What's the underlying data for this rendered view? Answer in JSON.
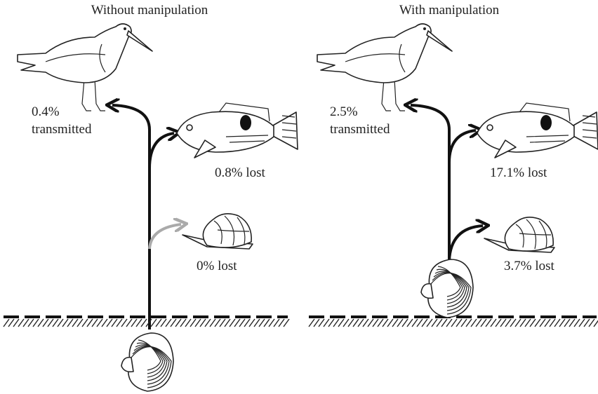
{
  "panels": [
    {
      "title": "Without manipulation",
      "transmitted_percent": "0.4%",
      "transmitted_word": "transmitted",
      "fish_loss": "0.8% lost",
      "snail_loss": "0% lost"
    },
    {
      "title": "With manipulation",
      "transmitted_percent": "2.5%",
      "transmitted_word": "transmitted",
      "fish_loss": "17.1% lost",
      "snail_loss": "3.7% lost"
    }
  ]
}
